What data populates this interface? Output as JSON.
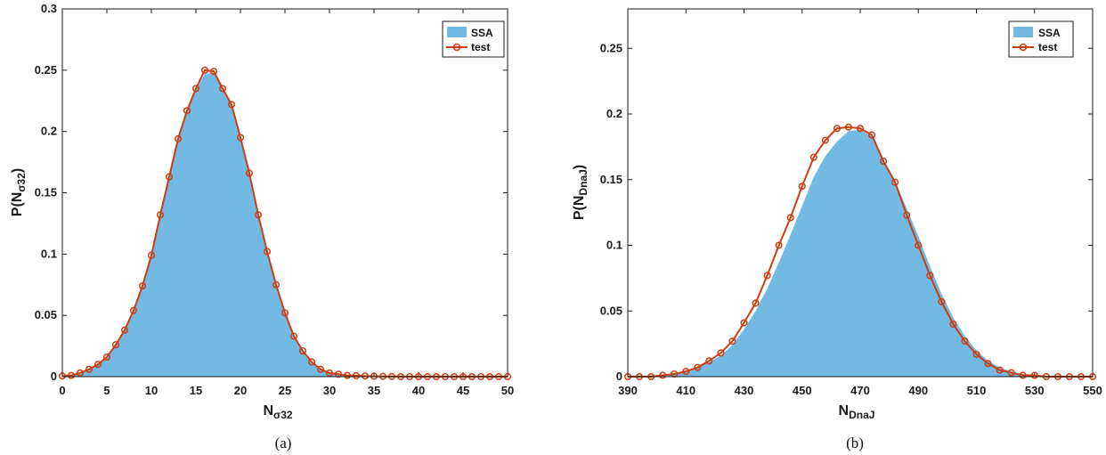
{
  "chart_data": [
    {
      "type": "area",
      "panel_label": "(a)",
      "xlabel_main": "N",
      "xlabel_sub": "σ32",
      "ylabel_pre": "P(N",
      "ylabel_sub": "σ32",
      "ylabel_post": ")",
      "xlim": [
        0,
        50
      ],
      "ylim": [
        0,
        0.3
      ],
      "xticks": [
        0,
        5,
        10,
        15,
        20,
        25,
        30,
        35,
        40,
        45,
        50
      ],
      "yticks": [
        0,
        0.05,
        0.1,
        0.15,
        0.2,
        0.25,
        0.3
      ],
      "ytick_labels": [
        "0",
        "0.05",
        "0.1",
        "0.15",
        "0.2",
        "0.25",
        "0.3"
      ],
      "legend": {
        "position": "top-right",
        "entries": [
          "SSA",
          "test"
        ]
      },
      "series": [
        {
          "name": "SSA",
          "style": "filled-area",
          "x": [
            0,
            1,
            2,
            3,
            4,
            5,
            6,
            7,
            8,
            9,
            10,
            11,
            12,
            13,
            14,
            15,
            16,
            17,
            18,
            19,
            20,
            21,
            22,
            23,
            24,
            25,
            26,
            27,
            28,
            29,
            30,
            31,
            32,
            33,
            34,
            35,
            36,
            37,
            38,
            39,
            40,
            41,
            42,
            43,
            44,
            45,
            46,
            47,
            48,
            49,
            50
          ],
          "y": [
            0.0005,
            0.001,
            0.003,
            0.006,
            0.01,
            0.016,
            0.026,
            0.038,
            0.054,
            0.074,
            0.099,
            0.131,
            0.162,
            0.193,
            0.216,
            0.234,
            0.247,
            0.248,
            0.234,
            0.221,
            0.194,
            0.165,
            0.131,
            0.101,
            0.074,
            0.051,
            0.032,
            0.02,
            0.011,
            0.006,
            0.003,
            0.002,
            0.001,
            0.0008,
            0.0005,
            0.0003,
            0.0002,
            0.0001,
            0,
            0,
            0,
            0,
            0,
            0,
            0,
            0,
            0,
            0,
            0,
            0,
            0
          ]
        },
        {
          "name": "test",
          "style": "line-markers",
          "x": [
            0,
            1,
            2,
            3,
            4,
            5,
            6,
            7,
            8,
            9,
            10,
            11,
            12,
            13,
            14,
            15,
            16,
            17,
            18,
            19,
            20,
            21,
            22,
            23,
            24,
            25,
            26,
            27,
            28,
            29,
            30,
            31,
            32,
            33,
            34,
            35,
            36,
            37,
            38,
            39,
            40,
            41,
            42,
            43,
            44,
            45,
            46,
            47,
            48,
            49,
            50
          ],
          "y": [
            0.0005,
            0.001,
            0.003,
            0.006,
            0.01,
            0.016,
            0.026,
            0.038,
            0.054,
            0.074,
            0.099,
            0.132,
            0.163,
            0.194,
            0.217,
            0.235,
            0.25,
            0.249,
            0.235,
            0.222,
            0.195,
            0.166,
            0.132,
            0.102,
            0.075,
            0.052,
            0.033,
            0.021,
            0.012,
            0.006,
            0.003,
            0.002,
            0.001,
            0.0008,
            0.0005,
            0.0003,
            0.0002,
            0.0001,
            0,
            0,
            0,
            0,
            0,
            0,
            0,
            0,
            0,
            0,
            0,
            0,
            0
          ]
        }
      ]
    },
    {
      "type": "area",
      "panel_label": "(b)",
      "xlabel_main": "N",
      "xlabel_sub": "DnaJ",
      "ylabel_pre": "P(N",
      "ylabel_sub": "DnaJ",
      "ylabel_post": ")",
      "xlim": [
        390,
        550
      ],
      "ylim": [
        0,
        0.28
      ],
      "xticks": [
        390,
        410,
        430,
        450,
        470,
        490,
        510,
        530,
        550
      ],
      "yticks": [
        0,
        0.05,
        0.1,
        0.15,
        0.2,
        0.25
      ],
      "ytick_labels": [
        "0",
        "0.05",
        "0.1",
        "0.15",
        "0.2",
        "0.25"
      ],
      "legend": {
        "position": "top-right",
        "entries": [
          "SSA",
          "test"
        ]
      },
      "series": [
        {
          "name": "SSA",
          "style": "filled-area",
          "x": [
            390,
            394,
            398,
            402,
            406,
            410,
            414,
            418,
            422,
            426,
            430,
            434,
            438,
            442,
            446,
            450,
            454,
            458,
            462,
            466,
            470,
            474,
            478,
            482,
            486,
            490,
            494,
            498,
            502,
            506,
            510,
            514,
            518,
            522,
            526,
            530,
            534,
            538,
            542,
            546,
            550
          ],
          "y": [
            0,
            0,
            0,
            0.001,
            0.002,
            0.004,
            0.007,
            0.011,
            0.016,
            0.024,
            0.036,
            0.05,
            0.067,
            0.087,
            0.108,
            0.13,
            0.152,
            0.168,
            0.179,
            0.187,
            0.188,
            0.183,
            0.165,
            0.149,
            0.128,
            0.107,
            0.084,
            0.063,
            0.045,
            0.031,
            0.02,
            0.012,
            0.007,
            0.004,
            0.002,
            0.001,
            0,
            0,
            0,
            0,
            0
          ]
        },
        {
          "name": "test",
          "style": "line-markers",
          "x": [
            390,
            394,
            398,
            402,
            406,
            410,
            414,
            418,
            422,
            426,
            430,
            434,
            438,
            442,
            446,
            450,
            454,
            458,
            462,
            466,
            470,
            474,
            478,
            482,
            486,
            490,
            494,
            498,
            502,
            506,
            510,
            514,
            518,
            522,
            526,
            530,
            534,
            538,
            542,
            546,
            550
          ],
          "y": [
            0,
            0,
            0,
            0.001,
            0.002,
            0.004,
            0.007,
            0.012,
            0.018,
            0.027,
            0.041,
            0.056,
            0.077,
            0.1,
            0.121,
            0.145,
            0.167,
            0.18,
            0.189,
            0.19,
            0.189,
            0.184,
            0.164,
            0.148,
            0.123,
            0.1,
            0.077,
            0.057,
            0.04,
            0.027,
            0.017,
            0.01,
            0.005,
            0.003,
            0.001,
            0.001,
            0,
            0,
            0,
            0,
            0
          ]
        }
      ]
    }
  ],
  "colors": {
    "area_fill": "#72b9e3",
    "line": "#cc3d12",
    "axis": "#1a1a1a"
  }
}
